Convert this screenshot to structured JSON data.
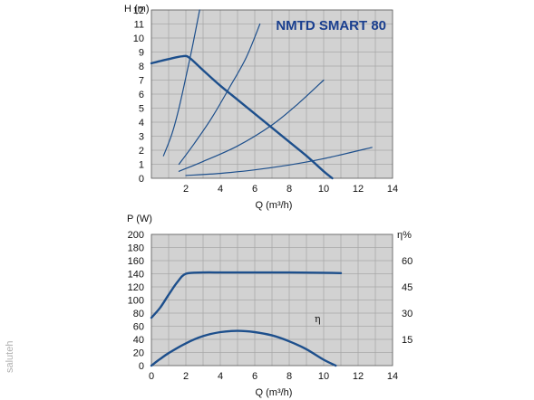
{
  "chart_data": [
    {
      "type": "line",
      "title": "NMTD SMART 80",
      "ylabel": "H (m)",
      "xlabel": "Q (m³/h)",
      "xlim": [
        0,
        14
      ],
      "ylim": [
        0,
        12
      ],
      "x_ticks": [
        "2",
        "4",
        "6",
        "8",
        "10",
        "12",
        "14"
      ],
      "y_ticks": [
        "0",
        "1",
        "2",
        "3",
        "4",
        "5",
        "6",
        "7",
        "8",
        "9",
        "10",
        "11",
        "12"
      ],
      "grid": true,
      "series": [
        {
          "role": "pump",
          "x": [
            0,
            1,
            1.8,
            2.2,
            3,
            4,
            5,
            6,
            7,
            8,
            9,
            10,
            10.5
          ],
          "y": [
            8.2,
            8.5,
            8.7,
            8.6,
            7.7,
            6.6,
            5.6,
            4.6,
            3.6,
            2.6,
            1.6,
            0.5,
            0
          ]
        },
        {
          "role": "system",
          "x": [
            0.7,
            1.2,
            1.6,
            2.0,
            2.4,
            2.8
          ],
          "y": [
            1.6,
            3.2,
            5.0,
            7.2,
            9.5,
            12.0
          ]
        },
        {
          "role": "system",
          "x": [
            1.6,
            2.5,
            3.5,
            4.5,
            5.5,
            6.3
          ],
          "y": [
            1.0,
            2.5,
            4.3,
            6.4,
            8.6,
            11.0
          ]
        },
        {
          "role": "system",
          "x": [
            1.6,
            3,
            5,
            7,
            8.5,
            10
          ],
          "y": [
            0.5,
            1.2,
            2.3,
            3.8,
            5.3,
            7.0
          ]
        },
        {
          "role": "system",
          "x": [
            2,
            4,
            6,
            8,
            10,
            12.8
          ],
          "y": [
            0.2,
            0.35,
            0.6,
            0.95,
            1.4,
            2.2
          ]
        }
      ]
    },
    {
      "type": "line",
      "ylabel": "P (W)",
      "xlabel": "Q (m³/h)",
      "y2label": "η%",
      "xlim": [
        0,
        14
      ],
      "ylim": [
        0,
        200
      ],
      "y2lim": [
        0,
        75
      ],
      "x_ticks": [
        "0",
        "2",
        "4",
        "6",
        "8",
        "10",
        "12",
        "14"
      ],
      "y_ticks": [
        "0",
        "20",
        "40",
        "60",
        "80",
        "100",
        "120",
        "140",
        "160",
        "180",
        "200"
      ],
      "y2_ticks": [
        "15",
        "30",
        "45",
        "60"
      ],
      "grid": true,
      "annotations": [
        "η"
      ],
      "series": [
        {
          "role": "power",
          "x": [
            0,
            0.5,
            1,
            1.5,
            2,
            3,
            4,
            5,
            6,
            8,
            10,
            11
          ],
          "y": [
            73,
            88,
            108,
            127,
            140,
            142,
            142,
            142,
            142,
            142,
            141.5,
            141
          ]
        },
        {
          "role": "efficiency",
          "x": [
            0,
            0.5,
            1,
            2,
            3,
            4,
            5,
            6,
            7,
            8,
            9,
            10,
            10.7
          ],
          "y": [
            0,
            10,
            19,
            34,
            45,
            51,
            53,
            51,
            46,
            37,
            25,
            9,
            0
          ]
        }
      ]
    }
  ],
  "watermark": "saluteh",
  "colors": {
    "plot_bg": "#d2d2d2",
    "grid": "#a9a9a9",
    "line": "#1d4f8c",
    "title": "#1a3f8f"
  }
}
